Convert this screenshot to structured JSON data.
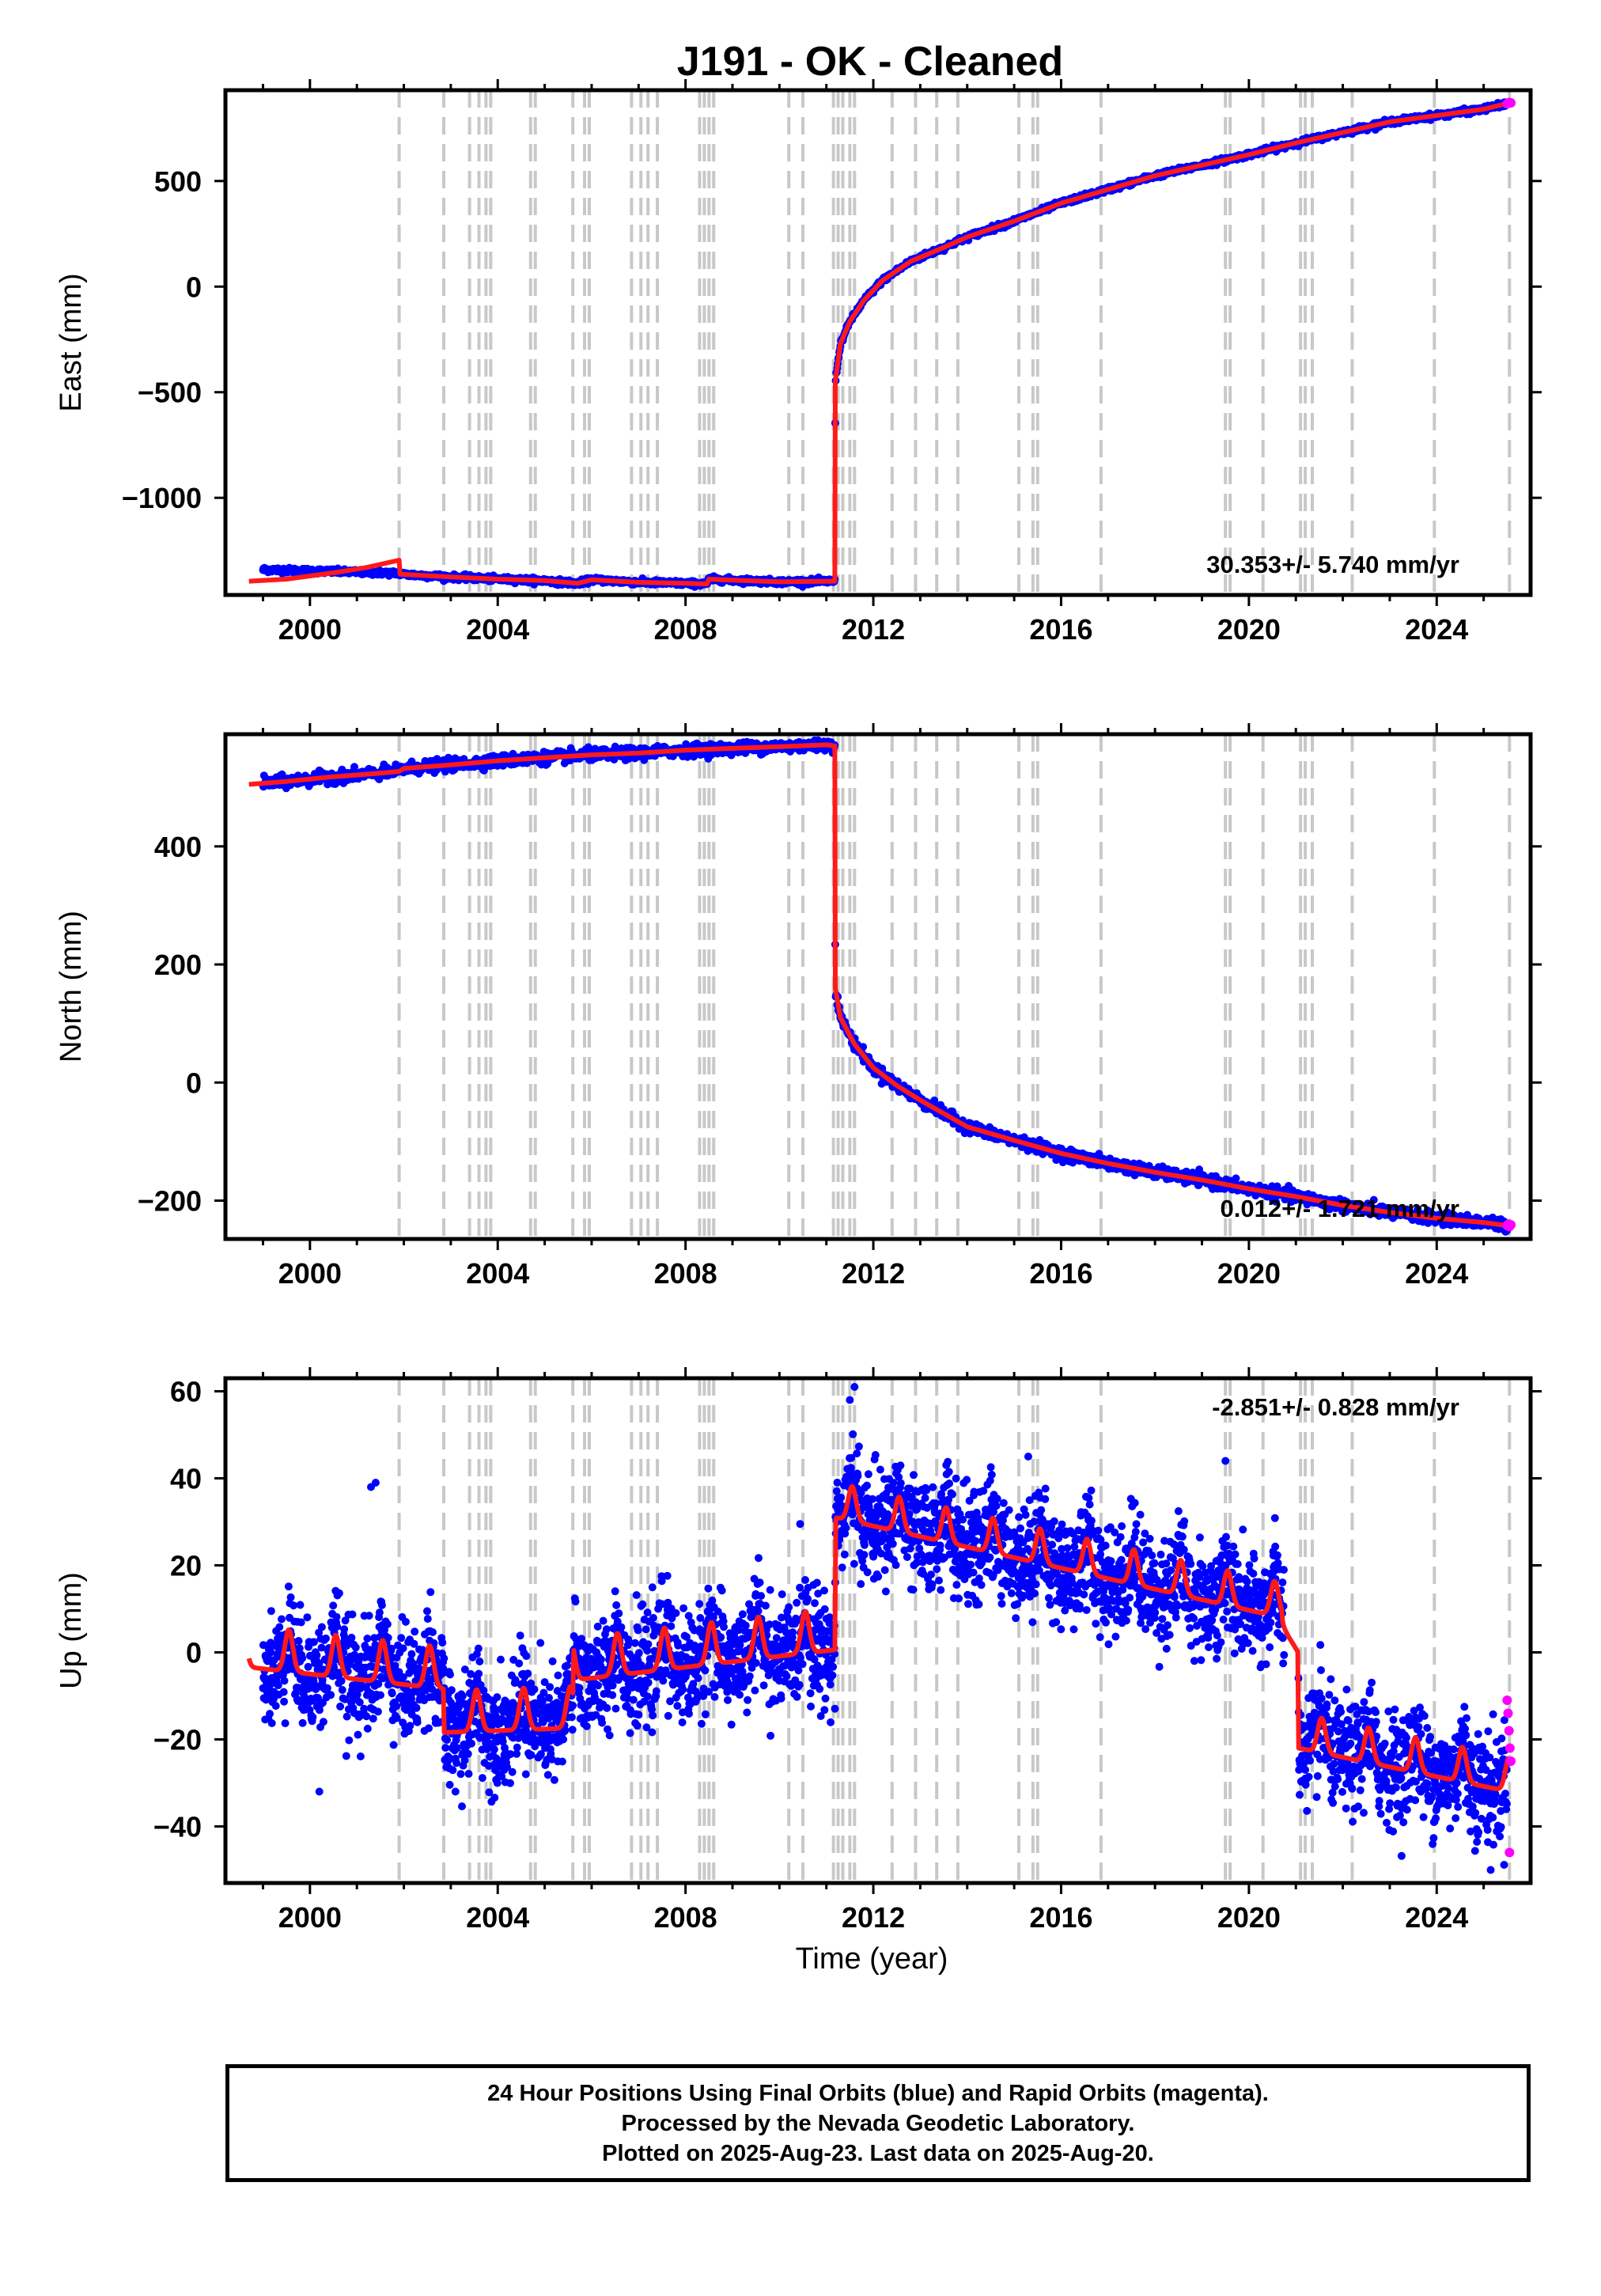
{
  "chart_data": {
    "type": "scatter",
    "title": "J191  - OK - Cleaned",
    "xlabel": "Time (year)",
    "colors": {
      "final_orbits": "#0000ff",
      "rapid_orbits": "#ff00ff",
      "model": "#ff0000",
      "event_lines": "#c8c8c8"
    },
    "xlim": [
      1998.2,
      2026.0
    ],
    "xticks": [
      2000,
      2004,
      2008,
      2012,
      2016,
      2020,
      2024
    ],
    "event_lines": [
      2001.9,
      2002.85,
      2003.4,
      2003.6,
      2003.75,
      2003.85,
      2004.7,
      2004.8,
      2005.6,
      2005.85,
      2005.95,
      2006.85,
      2007.05,
      2007.2,
      2007.4,
      2008.3,
      2008.4,
      2008.5,
      2008.6,
      2010.2,
      2010.5,
      2011.15,
      2011.25,
      2011.35,
      2011.5,
      2011.6,
      2012.4,
      2012.9,
      2013.35,
      2013.8,
      2015.1,
      2015.4,
      2015.5,
      2016.85,
      2019.5,
      2019.6,
      2020.3,
      2021.1,
      2021.2,
      2021.35,
      2022.2,
      2023.95,
      2025.55
    ],
    "grid": false,
    "panels": [
      {
        "name": "east",
        "ylabel": "East (mm)",
        "ylim": [
          -1460,
          930
        ],
        "yticks": [
          500,
          0,
          -500,
          -1000
        ],
        "ytick_labels": [
          "500",
          "0",
          "−500",
          "−1000"
        ],
        "rate_label": "30.353+/- 5.740 mm/yr",
        "rate_position": "bottom-right",
        "model": {
          "x": [
            1998.7,
            1999.5,
            2000.5,
            2001.2,
            2001.9,
            2001.92,
            2003.0,
            2004.0,
            2005.0,
            2005.7,
            2006.0,
            2007.0,
            2008.0,
            2008.45,
            2008.5,
            2009.0,
            2010.0,
            2011.18,
            2011.19,
            2011.3,
            2011.5,
            2011.8,
            2012.2,
            2012.8,
            2013.5,
            2014.0,
            2015.0,
            2016.0,
            2017.0,
            2018.0,
            2019.0,
            2020.0,
            2021.0,
            2022.0,
            2023.0,
            2024.0,
            2025.0,
            2025.55
          ],
          "y": [
            -1395,
            -1385,
            -1355,
            -1330,
            -1295,
            -1362,
            -1375,
            -1385,
            -1392,
            -1405,
            -1388,
            -1400,
            -1405,
            -1408,
            -1385,
            -1390,
            -1398,
            -1395,
            -450,
            -270,
            -165,
            -65,
            30,
            120,
            185,
            235,
            310,
            395,
            460,
            525,
            575,
            625,
            680,
            730,
            780,
            810,
            840,
            870
          ]
        },
        "data_envelope": {
          "band_mm": 10
        },
        "rapid_points": {
          "x": [
            2025.5,
            2025.53,
            2025.55,
            2025.58
          ],
          "y": [
            866,
            868,
            872,
            870
          ]
        }
      },
      {
        "name": "north",
        "ylabel": "North (mm)",
        "ylim": [
          -265,
          590
        ],
        "yticks": [
          400,
          200,
          0,
          -200
        ],
        "ytick_labels": [
          "400",
          "200",
          "0",
          "−200"
        ],
        "rate_label": "0.012+/- 1.721 mm/yr",
        "rate_position": "bottom-right",
        "model": {
          "x": [
            1998.7,
            1999.5,
            2000.5,
            2001.5,
            2001.9,
            2002.0,
            2003.0,
            2004.0,
            2005.0,
            2006.0,
            2007.0,
            2008.0,
            2009.0,
            2010.0,
            2011.0,
            2011.18,
            2011.19,
            2011.3,
            2011.6,
            2012.0,
            2012.5,
            2013.0,
            2014.0,
            2015.0,
            2016.0,
            2017.0,
            2018.0,
            2019.0,
            2020.0,
            2021.0,
            2022.0,
            2023.0,
            2024.0,
            2025.0,
            2025.55
          ],
          "y": [
            505,
            510,
            518,
            524,
            527,
            532,
            538,
            545,
            550,
            555,
            558,
            563,
            566,
            569,
            572,
            570,
            160,
            110,
            65,
            25,
            -5,
            -30,
            -75,
            -98,
            -120,
            -137,
            -152,
            -165,
            -180,
            -193,
            -208,
            -220,
            -230,
            -237,
            -243
          ]
        },
        "data_envelope": {
          "band_mm": 8
        },
        "rapid_points": {
          "x": [
            2025.5,
            2025.53,
            2025.55,
            2025.58
          ],
          "y": [
            -242,
            -240,
            -244,
            -241
          ]
        }
      },
      {
        "name": "up",
        "ylabel": "Up (mm)",
        "ylim": [
          -53,
          63
        ],
        "yticks": [
          60,
          40,
          20,
          0,
          -20,
          -40
        ],
        "ytick_labels": [
          "60",
          "40",
          "20",
          "0",
          "−20",
          "−40"
        ],
        "rate_label": "-2.851+/- 0.828 mm/yr",
        "rate_position": "top-right",
        "model": {
          "x": [
            1998.7,
            2002.85,
            2002.86,
            2005.6,
            2005.61,
            2011.18,
            2011.19,
            2020.7,
            2020.71,
            2021.05,
            2021.06,
            2025.55
          ],
          "trend_y": [
            -1,
            -6,
            -16,
            -15,
            -4,
            3,
            33,
            10,
            8,
            2,
            -20,
            -30
          ],
          "seasonal_amplitude_mm": 6,
          "seasonal_amplitude_late_mm": 5
        },
        "data_envelope": {
          "scatter_sd_mm": 6
        },
        "outliers": {
          "x": [
            2001.3,
            2001.4,
            2011.5,
            2011.6,
            2019.5,
            2025.15,
            2000.2,
            2003.1,
            2004.6,
            2015.3,
            2021.2,
            2010.8
          ],
          "y": [
            38,
            39,
            58,
            61,
            44,
            -50,
            -32,
            -32,
            -28,
            45,
            -27,
            16
          ]
        },
        "rapid_points": {
          "x": [
            2025.5,
            2025.52,
            2025.54,
            2025.56,
            2025.58,
            2025.55
          ],
          "y": [
            -11,
            -14,
            -18,
            -22,
            -25,
            -46
          ]
        }
      }
    ]
  },
  "legend": {
    "line1": "24 Hour Positions Using Final Orbits (blue) and Rapid Orbits (magenta).",
    "line2": "Processed by the Nevada Geodetic Laboratory.",
    "line3": "Plotted on 2025-Aug-23. Last data on 2025-Aug-20."
  }
}
